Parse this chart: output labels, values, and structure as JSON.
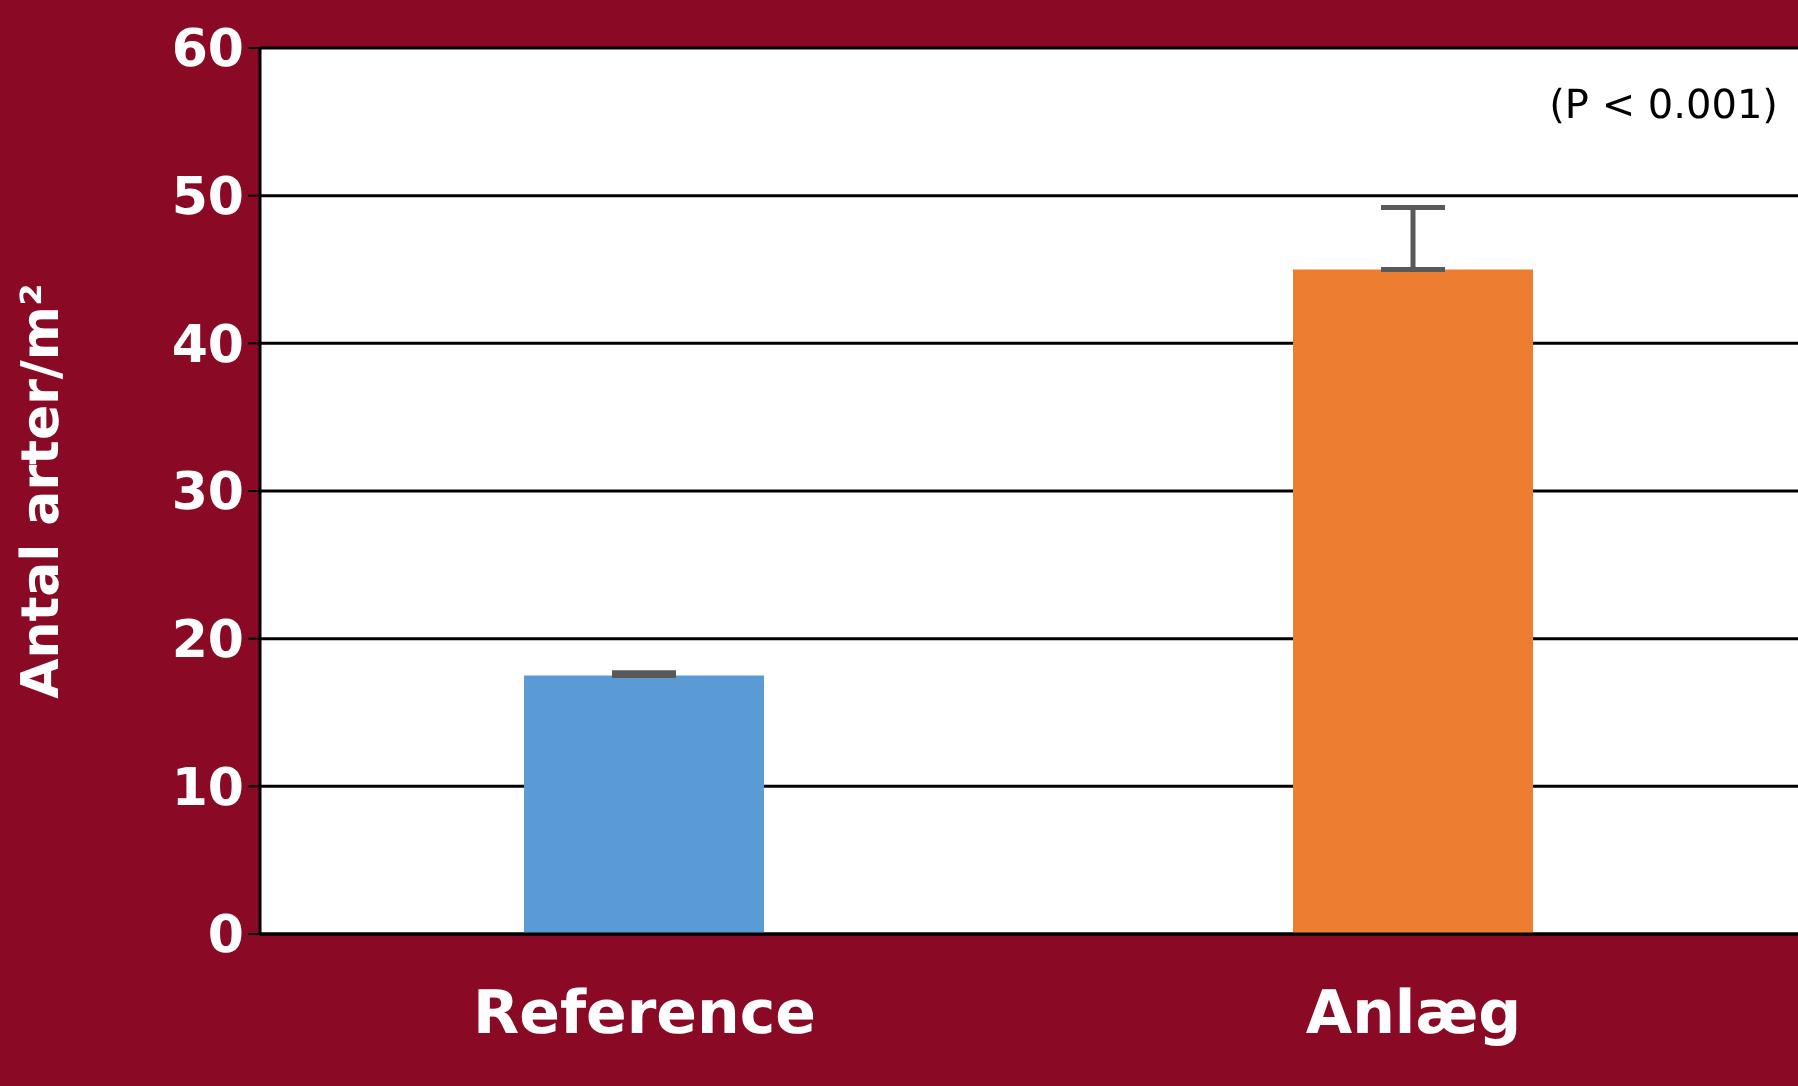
{
  "chart_data": {
    "type": "bar",
    "categories": [
      "Reference",
      "Anlæg"
    ],
    "values": [
      17.5,
      45
    ],
    "colors": [
      "#5b9bd5",
      "#ed7d31"
    ],
    "errors": [
      [
        17.5,
        17.7
      ],
      [
        45,
        49.2
      ]
    ],
    "ylabel": "Antal arter/m²",
    "ylim": [
      0,
      60
    ],
    "yticks": [
      0,
      10,
      20,
      30,
      40,
      50,
      60
    ],
    "grid": "y",
    "annotations": [
      "(P < 0.001)"
    ]
  }
}
